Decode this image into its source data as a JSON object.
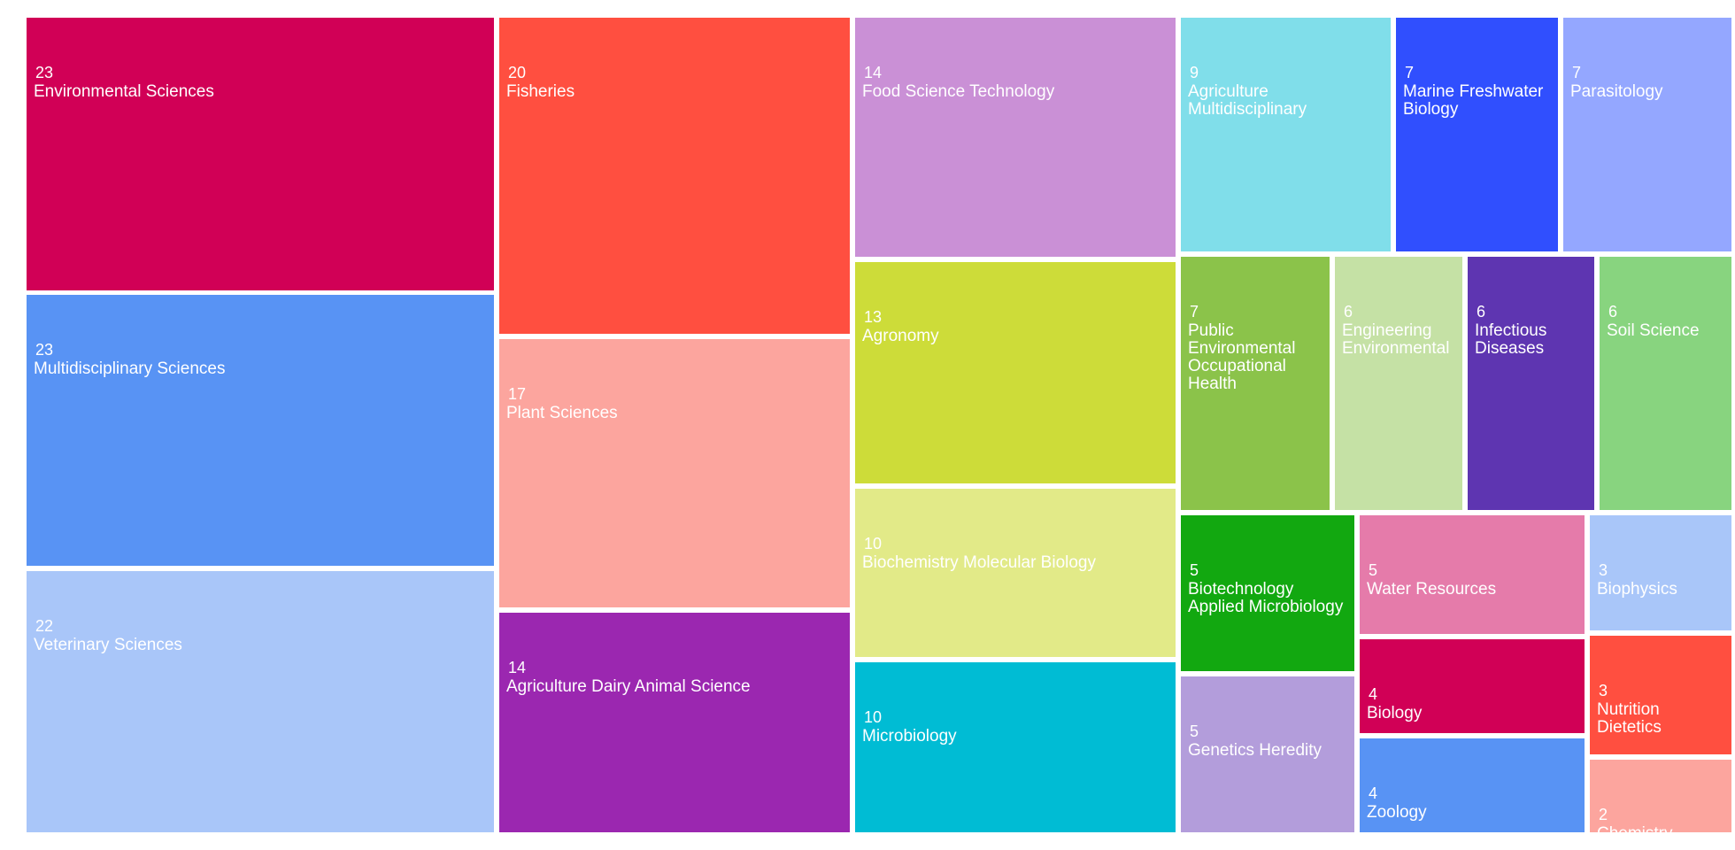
{
  "chart_data": {
    "type": "treemap",
    "title": "",
    "items": [
      {
        "label": "Environmental Sciences",
        "value": 23,
        "color": "#D10056"
      },
      {
        "label": "Multidisciplinary Sciences",
        "value": 23,
        "color": "#5893F4"
      },
      {
        "label": "Veterinary Sciences",
        "value": 22,
        "color": "#A9C6F9"
      },
      {
        "label": "Fisheries",
        "value": 20,
        "color": "#FF4F40"
      },
      {
        "label": "Plant Sciences",
        "value": 17,
        "color": "#FCA59E"
      },
      {
        "label": "Agriculture Dairy Animal Science",
        "value": 14,
        "color": "#9B27B0"
      },
      {
        "label": "Food Science Technology",
        "value": 14,
        "color": "#CA90D6"
      },
      {
        "label": "Agronomy",
        "value": 13,
        "color": "#CDDC39"
      },
      {
        "label": "Biochemistry Molecular Biology",
        "value": 10,
        "color": "#E2EA88"
      },
      {
        "label": "Microbiology",
        "value": 10,
        "color": "#00BCD4"
      },
      {
        "label": "Agriculture Multidisciplinary",
        "value": 9,
        "color": "#80DEEA"
      },
      {
        "label": "Marine Freshwater Biology",
        "value": 7,
        "color": "#304FFE"
      },
      {
        "label": "Parasitology",
        "value": 7,
        "color": "#94A7FF"
      },
      {
        "label": "Public Environmental Occupational Health",
        "value": 7,
        "color": "#8BC34A"
      },
      {
        "label": "Engineering Environmental",
        "value": 6,
        "color": "#C5E1A5"
      },
      {
        "label": "Infectious Diseases",
        "value": 6,
        "color": "#5E35B1"
      },
      {
        "label": "Soil Science",
        "value": 6,
        "color": "#88D47F"
      },
      {
        "label": "Biotechnology Applied Microbiology",
        "value": 5,
        "color": "#12A810"
      },
      {
        "label": "Water Resources",
        "value": 5,
        "color": "#E57BAA"
      },
      {
        "label": "Genetics Heredity",
        "value": 5,
        "color": "#B39DDB"
      },
      {
        "label": "Biology",
        "value": 4,
        "color": "#D10056"
      },
      {
        "label": "Zoology",
        "value": 4,
        "color": "#5893F4"
      },
      {
        "label": "Biophysics",
        "value": 3,
        "color": "#A9C6F9"
      },
      {
        "label": "Nutrition Dietetics",
        "value": 3,
        "color": "#FF4F40"
      },
      {
        "label": "Chemistry",
        "value": 2,
        "color": "#FCA59E"
      }
    ]
  }
}
